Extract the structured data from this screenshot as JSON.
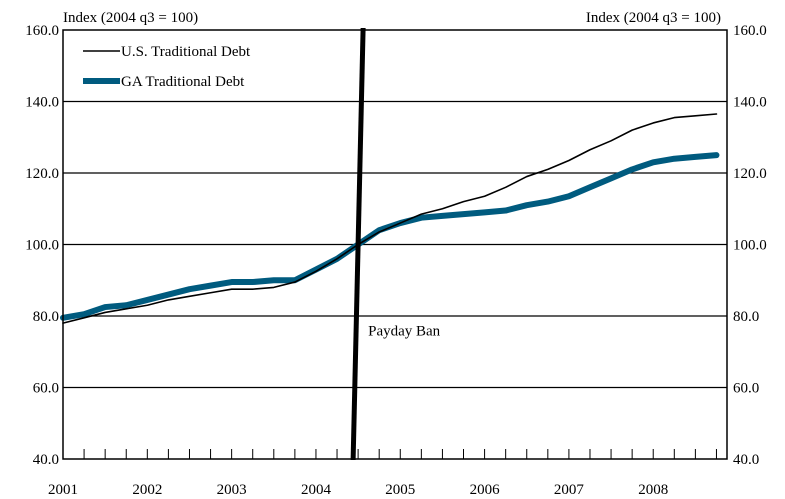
{
  "chart_data": {
    "type": "line",
    "left_axis_label": "Index (2004 q3 = 100)",
    "right_axis_label": "Index (2004 q3 = 100)",
    "ylim": [
      40,
      160
    ],
    "yticks": [
      40,
      60,
      80,
      100,
      120,
      140,
      160
    ],
    "ytick_labels": [
      "40.0",
      "60.0",
      "80.0",
      "100.0",
      "120.0",
      "140.0",
      "160.0"
    ],
    "xlim": [
      2001,
      2008.875
    ],
    "xticks": [
      2001,
      2002,
      2003,
      2004,
      2005,
      2006,
      2007,
      2008
    ],
    "xtick_labels": [
      "2001",
      "2002",
      "2003",
      "2004",
      "2005",
      "2006",
      "2007",
      "2008"
    ],
    "grid": "horizontal",
    "legend_position": "top-left",
    "series": [
      {
        "name": "U.S. Traditional Debt",
        "color": "#000000",
        "style": "thin",
        "x": [
          2001.0,
          2001.25,
          2001.5,
          2001.75,
          2002.0,
          2002.25,
          2002.5,
          2002.75,
          2003.0,
          2003.25,
          2003.5,
          2003.75,
          2004.0,
          2004.25,
          2004.5,
          2004.75,
          2005.0,
          2005.25,
          2005.5,
          2005.75,
          2006.0,
          2006.25,
          2006.5,
          2006.75,
          2007.0,
          2007.25,
          2007.5,
          2007.75,
          2008.0,
          2008.25,
          2008.5,
          2008.75
        ],
        "values": [
          78.0,
          79.5,
          81.0,
          82.0,
          83.0,
          84.5,
          85.5,
          86.5,
          87.5,
          87.5,
          88.0,
          89.5,
          92.5,
          96.0,
          100.0,
          103.5,
          106.0,
          108.5,
          110.0,
          112.0,
          113.5,
          116.0,
          119.0,
          121.0,
          123.5,
          126.5,
          129.0,
          132.0,
          134.0,
          135.5,
          136.0,
          136.5
        ]
      },
      {
        "name": "GA Traditional Debt",
        "color": "#005b7f",
        "style": "thick",
        "x": [
          2001.0,
          2001.25,
          2001.5,
          2001.75,
          2002.0,
          2002.25,
          2002.5,
          2002.75,
          2003.0,
          2003.25,
          2003.5,
          2003.75,
          2004.0,
          2004.25,
          2004.5,
          2004.75,
          2005.0,
          2005.25,
          2005.5,
          2005.75,
          2006.0,
          2006.25,
          2006.5,
          2006.75,
          2007.0,
          2007.25,
          2007.5,
          2007.75,
          2008.0,
          2008.25,
          2008.5,
          2008.75
        ],
        "values": [
          79.5,
          80.5,
          82.5,
          83.0,
          84.5,
          86.0,
          87.5,
          88.5,
          89.5,
          89.5,
          90.0,
          90.0,
          93.0,
          96.0,
          100.0,
          104.0,
          106.0,
          107.5,
          108.0,
          108.5,
          109.0,
          109.5,
          111.0,
          112.0,
          113.5,
          116.0,
          118.5,
          121.0,
          123.0,
          124.0,
          124.5,
          125.0
        ]
      }
    ],
    "event_line": {
      "x": 2004.5,
      "label": "Payday Ban"
    }
  }
}
